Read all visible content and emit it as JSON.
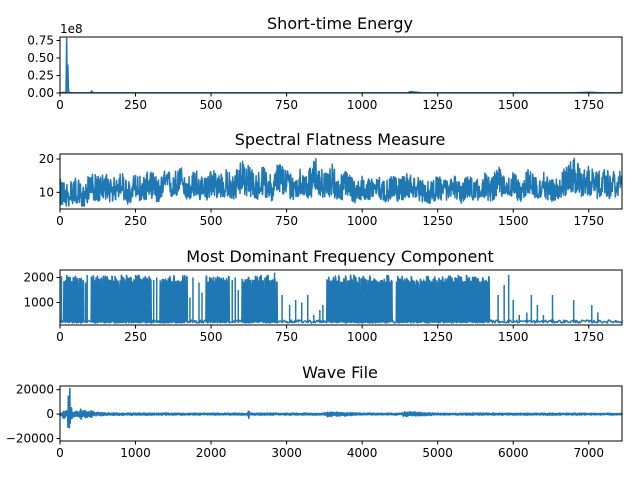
{
  "colors": {
    "line": "#1f77b4",
    "axis": "#000000",
    "background": "#ffffff"
  },
  "chart_data": [
    {
      "type": "line",
      "title": "Short-time Energy",
      "xlabel": "",
      "ylabel": "",
      "xlim": [
        0,
        1860
      ],
      "ylim": [
        0,
        0.8
      ],
      "offset_label": "1e8",
      "xticks": [
        0,
        250,
        500,
        750,
        1000,
        1250,
        1500,
        1750
      ],
      "xtick_labels": [
        "0",
        "250",
        "500",
        "750",
        "1000",
        "1250",
        "1500",
        "1750"
      ],
      "yticks": [
        0,
        0.25,
        0.5,
        0.75
      ],
      "ytick_labels": [
        "0.00",
        "0.25",
        "0.50",
        "0.75"
      ],
      "grid": false,
      "series": [
        {
          "x": [
            0,
            5,
            10,
            15,
            20,
            22,
            24,
            26,
            28,
            30,
            35,
            40,
            60,
            80,
            100,
            105,
            110,
            130,
            200,
            300,
            400,
            500,
            600,
            700,
            800,
            900,
            1000,
            1100,
            1150,
            1160,
            1200,
            1300,
            1400,
            1500,
            1600,
            1700,
            1750,
            1800,
            1860
          ],
          "y": [
            0.002,
            0.003,
            0.01,
            0.005,
            0.01,
            0.78,
            0.02,
            0.4,
            0.05,
            0.01,
            0.003,
            0.002,
            0.002,
            0.002,
            0.001,
            0.03,
            0.002,
            0.001,
            0.001,
            0.002,
            0.001,
            0.002,
            0.001,
            0.002,
            0.001,
            0.002,
            0.001,
            0.002,
            0.002,
            0.02,
            0.002,
            0.001,
            0.001,
            0.002,
            0.001,
            0.002,
            0.01,
            0.002,
            0.001
          ]
        }
      ]
    },
    {
      "type": "line",
      "title": "Spectral Flatness Measure",
      "xlabel": "",
      "ylabel": "",
      "xlim": [
        0,
        1860
      ],
      "ylim": [
        5,
        21.5
      ],
      "xticks": [
        0,
        250,
        500,
        750,
        1000,
        1250,
        1500,
        1750
      ],
      "xtick_labels": [
        "0",
        "250",
        "500",
        "750",
        "1000",
        "1250",
        "1500",
        "1750"
      ],
      "yticks": [
        10,
        20
      ],
      "ytick_labels": [
        "10",
        "20"
      ],
      "grid": false,
      "series": [
        {
          "x": [
            0,
            25,
            50,
            75,
            100,
            125,
            150,
            175,
            200,
            225,
            250,
            275,
            300,
            325,
            350,
            375,
            400,
            425,
            450,
            475,
            500,
            525,
            550,
            575,
            600,
            625,
            650,
            675,
            700,
            725,
            750,
            775,
            800,
            825,
            850,
            875,
            900,
            925,
            950,
            975,
            1000,
            1025,
            1050,
            1075,
            1100,
            1125,
            1150,
            1175,
            1200,
            1225,
            1250,
            1275,
            1300,
            1325,
            1350,
            1375,
            1400,
            1425,
            1450,
            1475,
            1500,
            1525,
            1550,
            1575,
            1600,
            1625,
            1650,
            1675,
            1700,
            1725,
            1750,
            1775,
            1800,
            1825,
            1860
          ],
          "y": [
            9,
            8,
            10,
            7,
            12,
            10,
            11,
            9,
            13,
            8,
            11,
            10,
            12,
            9,
            13,
            11,
            14,
            10,
            12,
            9,
            13,
            11,
            12,
            10,
            15,
            12,
            11,
            13,
            10,
            14,
            12,
            11,
            13,
            12,
            15,
            11,
            13,
            10,
            12,
            9,
            11,
            10,
            12,
            9,
            11,
            10,
            12,
            11,
            10,
            9,
            11,
            10,
            12,
            9,
            11,
            10,
            12,
            10,
            13,
            11,
            12,
            10,
            13,
            11,
            12,
            10,
            11,
            13,
            14,
            12,
            13,
            11,
            12,
            11,
            13
          ],
          "upper": [
            14,
            13,
            15,
            12,
            16,
            15,
            16,
            14,
            17,
            13,
            16,
            15,
            17,
            14,
            17,
            16,
            18,
            15,
            17,
            14,
            18,
            16,
            17,
            15,
            21,
            18,
            16,
            18,
            15,
            20,
            17,
            16,
            18,
            17,
            21,
            16,
            19,
            15,
            17,
            14,
            15,
            14,
            16,
            13,
            15,
            14,
            16,
            15,
            14,
            13,
            15,
            14,
            16,
            13,
            15,
            14,
            17,
            14,
            18,
            15,
            16,
            14,
            17,
            15,
            16,
            14,
            15,
            18,
            21,
            17,
            18,
            16,
            17,
            16,
            18
          ],
          "lower": [
            6,
            5.5,
            7,
            5,
            8,
            7,
            8,
            6.5,
            9,
            6,
            8,
            7,
            8.5,
            6.5,
            9,
            8,
            10,
            7,
            8.5,
            6.5,
            9,
            8,
            8.5,
            7,
            10,
            8,
            7.5,
            9,
            7,
            10,
            8,
            7.5,
            9,
            8,
            10,
            7.5,
            9,
            7,
            8.5,
            6.5,
            8,
            7,
            8.5,
            6.5,
            8,
            7,
            8.5,
            8,
            7,
            6.5,
            8,
            7,
            8.5,
            6.5,
            8,
            7,
            8.5,
            7,
            9,
            8,
            8.5,
            7,
            9,
            8,
            8.5,
            7,
            8,
            9,
            10,
            8.5,
            9,
            8,
            8.5,
            8,
            9
          ]
        }
      ]
    },
    {
      "type": "line",
      "title": "Most Dominant Frequency Component",
      "xlabel": "",
      "ylabel": "",
      "xlim": [
        0,
        1860
      ],
      "ylim": [
        100,
        2300
      ],
      "xticks": [
        0,
        250,
        500,
        750,
        1000,
        1250,
        1500,
        1750
      ],
      "xtick_labels": [
        "0",
        "250",
        "500",
        "750",
        "1000",
        "1250",
        "1500",
        "1750"
      ],
      "yticks": [
        1000,
        2000
      ],
      "ytick_labels": [
        "1000",
        "2000"
      ],
      "grid": false,
      "series": [
        {
          "baseline": 180,
          "dense_ranges": [
            [
              10,
              80
            ],
            [
              100,
              300
            ],
            [
              330,
              420
            ],
            [
              480,
              560
            ],
            [
              600,
              720
            ],
            [
              880,
              1100
            ],
            [
              1110,
              1420
            ]
          ],
          "sparse_spikes": [
            [
              5,
              2050
            ],
            [
              85,
              1800
            ],
            [
              90,
              2100
            ],
            [
              310,
              1900
            ],
            [
              320,
              2000
            ],
            [
              430,
              1200
            ],
            [
              440,
              2000
            ],
            [
              460,
              1800
            ],
            [
              470,
              1400
            ],
            [
              570,
              1900
            ],
            [
              580,
              2000
            ],
            [
              590,
              1500
            ],
            [
              710,
              2200
            ],
            [
              735,
              1300
            ],
            [
              760,
              900
            ],
            [
              780,
              1100
            ],
            [
              800,
              1000
            ],
            [
              820,
              1300
            ],
            [
              840,
              500
            ],
            [
              860,
              700
            ],
            [
              870,
              900
            ],
            [
              1450,
              1300
            ],
            [
              1470,
              1700
            ],
            [
              1485,
              2100
            ],
            [
              1500,
              1100
            ],
            [
              1520,
              500
            ],
            [
              1545,
              600
            ],
            [
              1560,
              1300
            ],
            [
              1580,
              900
            ],
            [
              1600,
              500
            ],
            [
              1630,
              1300
            ],
            [
              1700,
              1100
            ],
            [
              1760,
              900
            ],
            [
              1780,
              600
            ],
            [
              1840,
              300
            ]
          ]
        }
      ]
    },
    {
      "type": "line",
      "title": "Wave File",
      "xlabel": "",
      "ylabel": "",
      "xlim": [
        0,
        7440
      ],
      "ylim": [
        -22000,
        23000
      ],
      "xticks": [
        0,
        1000,
        2000,
        3000,
        4000,
        5000,
        6000,
        7000
      ],
      "xtick_labels": [
        "0",
        "1000",
        "2000",
        "3000",
        "4000",
        "5000",
        "6000",
        "7000"
      ],
      "yticks": [
        -20000,
        0,
        20000
      ],
      "ytick_labels": [
        "−20000",
        "0",
        "20000"
      ],
      "grid": false,
      "series": [
        {
          "envelope_x": [
            0,
            20,
            40,
            60,
            80,
            100,
            110,
            120,
            130,
            140,
            160,
            180,
            200,
            240,
            280,
            300,
            340,
            380,
            420,
            460,
            500,
            600,
            800,
            1000,
            1500,
            2000,
            2480,
            2500,
            2520,
            3000,
            3500,
            3520,
            4000,
            4520,
            4540,
            5000,
            5500,
            6000,
            6500,
            7000,
            7440
          ],
          "envelope_amp": [
            500,
            1500,
            3000,
            5000,
            2500,
            6000,
            21000,
            4000,
            22000,
            8000,
            4000,
            2500,
            3000,
            2000,
            4500,
            2500,
            3500,
            2000,
            3000,
            1500,
            1500,
            1200,
            1000,
            1000,
            900,
            800,
            900,
            3500,
            900,
            900,
            800,
            2200,
            900,
            800,
            2300,
            800,
            900,
            800,
            900,
            800,
            700
          ]
        }
      ]
    }
  ]
}
